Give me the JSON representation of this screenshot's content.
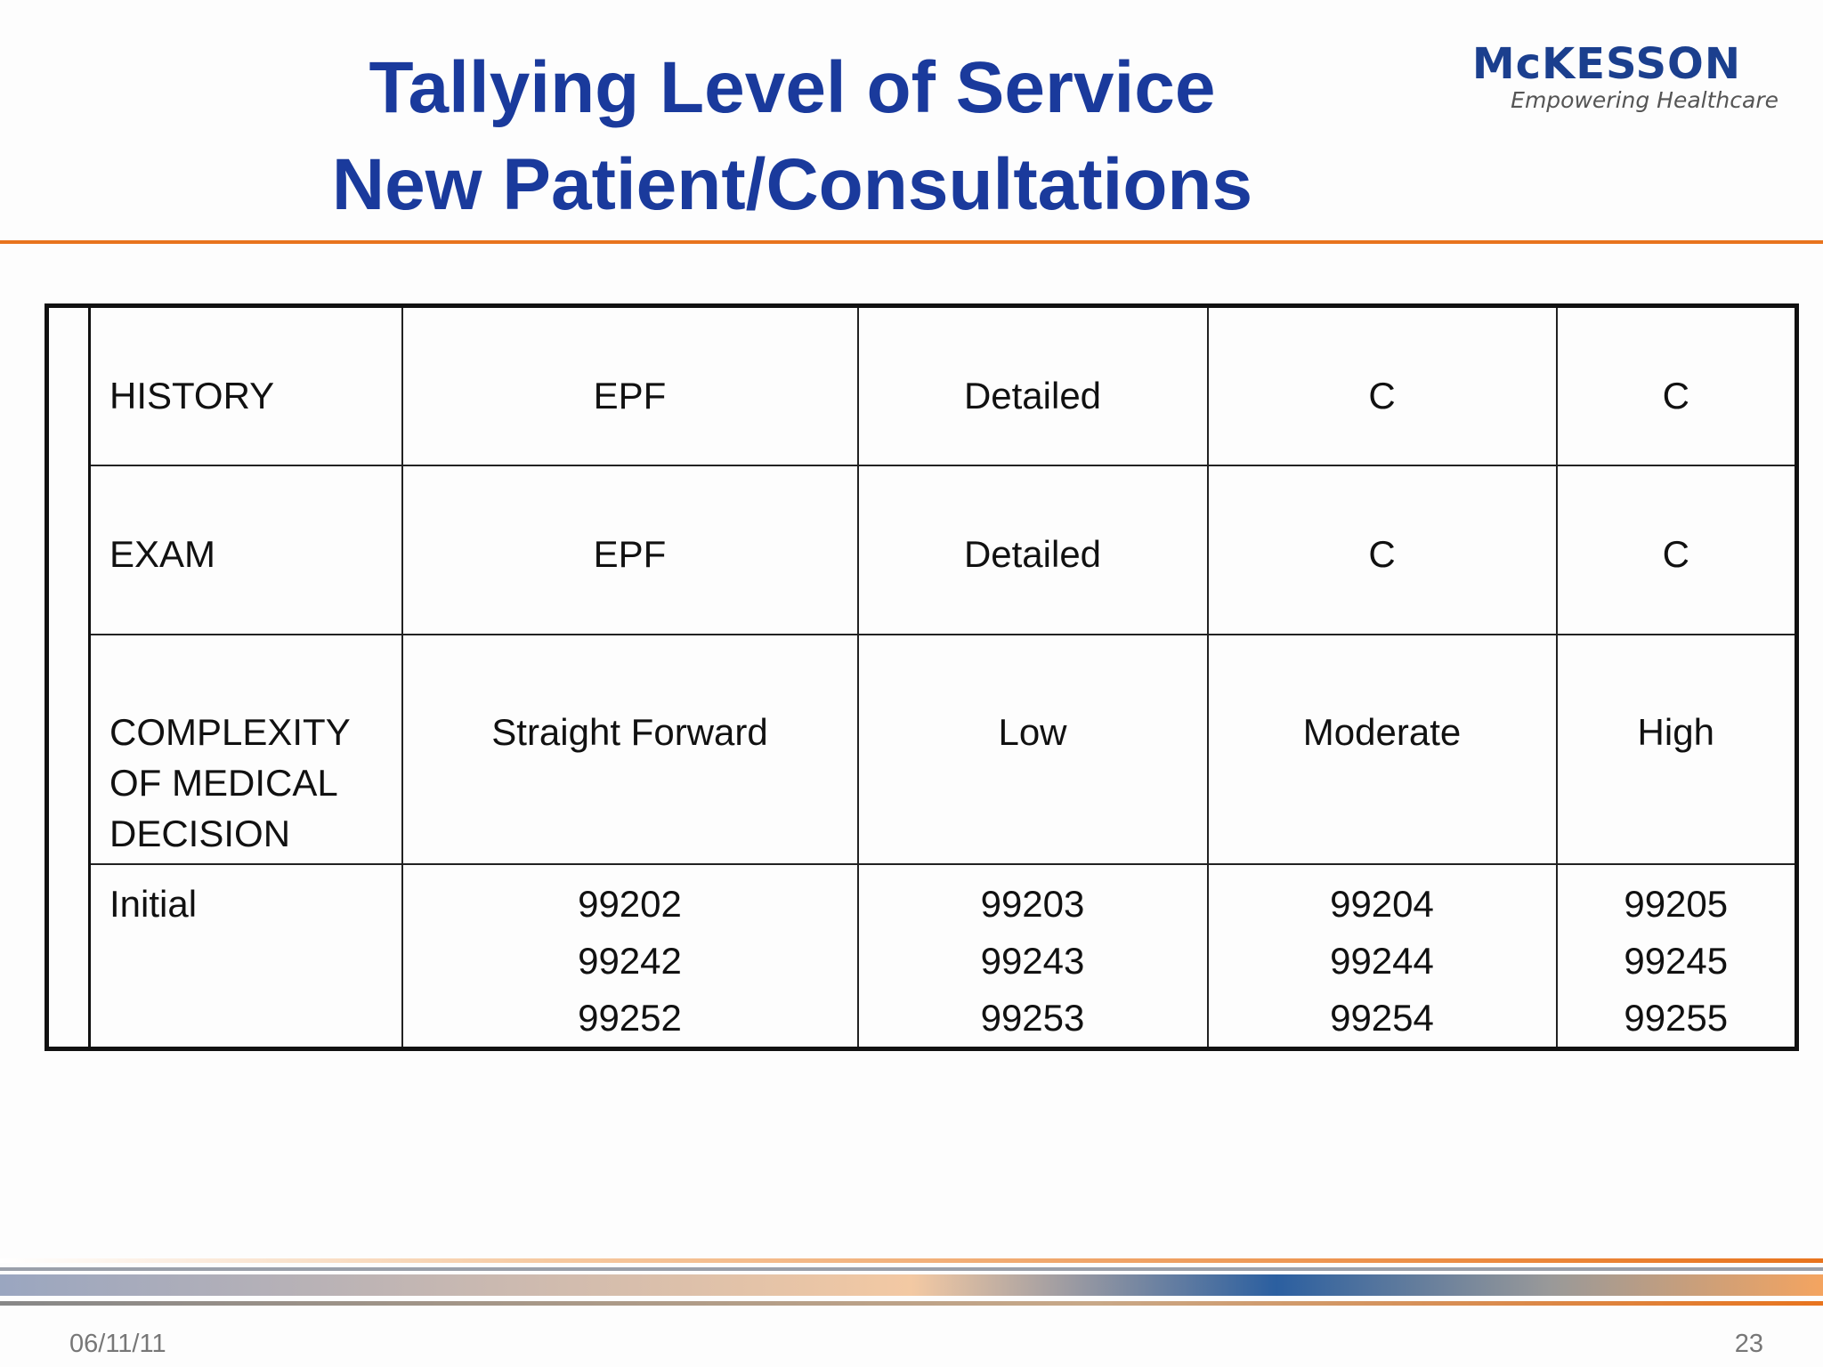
{
  "header": {
    "title": [
      "Tallying Level of Service",
      "New Patient/Consultations"
    ],
    "logo": {
      "brand": "McKESSON",
      "tagline": "Empowering Healthcare"
    }
  },
  "table": {
    "rows": [
      [
        "HISTORY",
        "EPF",
        "Detailed",
        "C",
        "C"
      ],
      [
        "EXAM",
        "EPF",
        "Detailed",
        "C",
        "C"
      ],
      [
        "COMPLEXITY OF MEDICAL DECISION",
        "Straight Forward",
        "Low",
        "Moderate",
        "High"
      ],
      [
        "Initial",
        [
          "99202",
          "99242",
          "99252"
        ],
        [
          "99203",
          "99243",
          "99253"
        ],
        [
          "99204",
          "99244",
          "99254"
        ],
        [
          "99205",
          "99245",
          "99255"
        ]
      ]
    ]
  },
  "footer": {
    "date": "06/11/11",
    "page": "23"
  }
}
